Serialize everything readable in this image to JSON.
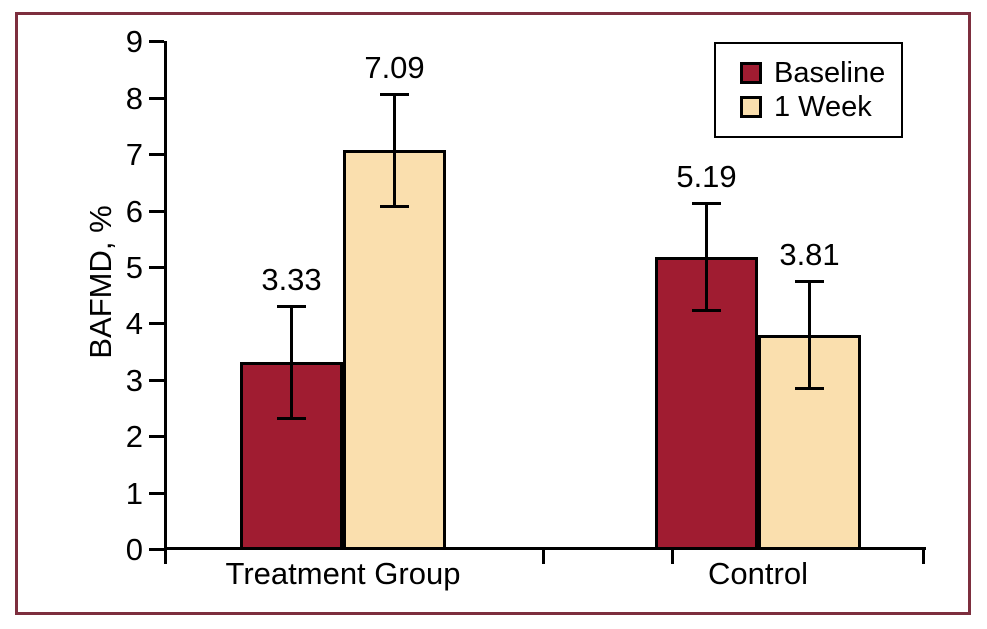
{
  "figure": {
    "frame_color": "#7d2e3e",
    "background": "#ffffff"
  },
  "chart_data": {
    "type": "bar",
    "title": "",
    "xlabel": "",
    "ylabel": "BAFMD, %",
    "ylim": [
      0,
      9
    ],
    "yticks": [
      0,
      1,
      2,
      3,
      4,
      5,
      6,
      7,
      8,
      9
    ],
    "categories": [
      "Treatment Group",
      "Control"
    ],
    "series": [
      {
        "name": "Baseline",
        "color": "#a01c31",
        "values": [
          3.33,
          5.19
        ],
        "errors": [
          1.0,
          0.96
        ],
        "value_labels": [
          "3.33",
          "5.19"
        ]
      },
      {
        "name": "1 Week",
        "color": "#fadfae",
        "values": [
          7.09,
          3.81
        ],
        "errors": [
          1.0,
          0.96
        ],
        "value_labels": [
          "7.09",
          "3.81"
        ]
      }
    ],
    "legend_position": "top-right",
    "grid": false,
    "error_bars": true,
    "axis_color": "#000000",
    "text_color": "#000000"
  }
}
